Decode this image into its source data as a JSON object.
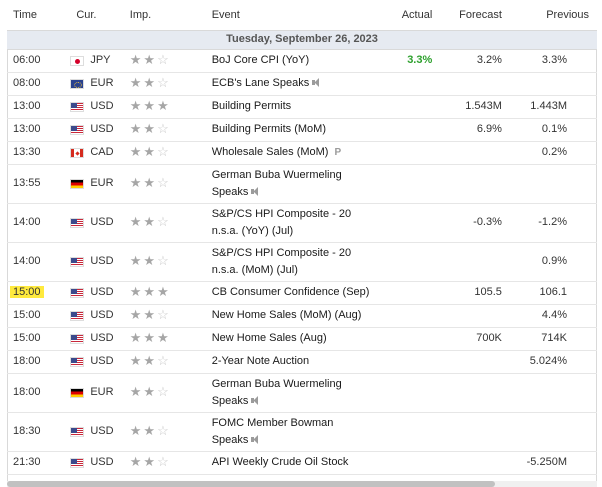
{
  "headers": {
    "time": "Time",
    "currency": "Cur.",
    "importance": "Imp.",
    "event": "Event",
    "actual": "Actual",
    "forecast": "Forecast",
    "previous": "Previous"
  },
  "date_label": "Tuesday, September 26, 2023",
  "colors": {
    "actual_positive": "#2da02d",
    "date_row_bg": "#e6eaf1",
    "time_highlight": "#ffea3d"
  },
  "rows": [
    {
      "time": "06:00",
      "currency": "JPY",
      "flag": "flag-jpy",
      "importance": 2,
      "event_line1": "BoJ Core CPI (YoY)",
      "event_line2": "",
      "icon": "",
      "actual": "3.3%",
      "actual_positive": true,
      "forecast": "3.2%",
      "previous": "3.3%"
    },
    {
      "time": "08:00",
      "currency": "EUR",
      "flag": "flag-eur",
      "importance": 2,
      "event_line1": "ECB's Lane Speaks",
      "event_line2": "",
      "icon": "speaker-icon",
      "actual": "",
      "forecast": "",
      "previous": ""
    },
    {
      "time": "13:00",
      "currency": "USD",
      "flag": "flag-usd",
      "importance": 3,
      "event_line1": "Building Permits",
      "event_line2": "",
      "icon": "",
      "actual": "",
      "forecast": "1.543M",
      "previous": "1.443M"
    },
    {
      "time": "13:00",
      "currency": "USD",
      "flag": "flag-usd",
      "importance": 2,
      "event_line1": "Building Permits (MoM)",
      "event_line2": "",
      "icon": "",
      "actual": "",
      "forecast": "6.9%",
      "previous": "0.1%"
    },
    {
      "time": "13:30",
      "currency": "CAD",
      "flag": "flag-cad",
      "importance": 2,
      "event_line1": "Wholesale Sales (MoM)",
      "event_line2": "",
      "icon": "prelim-icon",
      "actual": "",
      "forecast": "",
      "previous": "0.2%"
    },
    {
      "time": "13:55",
      "currency": "EUR",
      "flag": "flag-eur-de",
      "importance": 2,
      "event_line1": "German Buba Wuermeling",
      "event_line2": "Speaks",
      "icon": "speaker-icon",
      "actual": "",
      "forecast": "",
      "previous": ""
    },
    {
      "time": "14:00",
      "currency": "USD",
      "flag": "flag-usd",
      "importance": 2,
      "event_line1": "S&P/CS HPI Composite - 20",
      "event_line2": "n.s.a. (YoY) (Jul)",
      "icon": "",
      "actual": "",
      "forecast": "-0.3%",
      "previous": "-1.2%"
    },
    {
      "time": "14:00",
      "currency": "USD",
      "flag": "flag-usd",
      "importance": 2,
      "event_line1": "S&P/CS HPI Composite - 20",
      "event_line2": "n.s.a. (MoM) (Jul)",
      "icon": "",
      "actual": "",
      "forecast": "",
      "previous": "0.9%"
    },
    {
      "time": "15:00",
      "currency": "USD",
      "flag": "flag-usd",
      "importance": 3,
      "event_line1": "CB Consumer Confidence (Sep)",
      "event_line2": "",
      "icon": "",
      "actual": "",
      "forecast": "105.5",
      "previous": "106.1",
      "highlight": true
    },
    {
      "time": "15:00",
      "currency": "USD",
      "flag": "flag-usd",
      "importance": 2,
      "event_line1": "New Home Sales (MoM) (Aug)",
      "event_line2": "",
      "icon": "",
      "actual": "",
      "forecast": "",
      "previous": "4.4%"
    },
    {
      "time": "15:00",
      "currency": "USD",
      "flag": "flag-usd",
      "importance": 3,
      "event_line1": "New Home Sales (Aug)",
      "event_line2": "",
      "icon": "",
      "actual": "",
      "forecast": "700K",
      "previous": "714K"
    },
    {
      "time": "18:00",
      "currency": "USD",
      "flag": "flag-usd",
      "importance": 2,
      "event_line1": "2-Year Note Auction",
      "event_line2": "",
      "icon": "",
      "actual": "",
      "forecast": "",
      "previous": "5.024%"
    },
    {
      "time": "18:00",
      "currency": "EUR",
      "flag": "flag-eur-de",
      "importance": 2,
      "event_line1": "German Buba Wuermeling",
      "event_line2": "Speaks",
      "icon": "speaker-icon",
      "actual": "",
      "forecast": "",
      "previous": ""
    },
    {
      "time": "18:30",
      "currency": "USD",
      "flag": "flag-usd",
      "importance": 2,
      "event_line1": "FOMC Member Bowman",
      "event_line2": "Speaks",
      "icon": "speaker-icon",
      "actual": "",
      "forecast": "",
      "previous": ""
    },
    {
      "time": "21:30",
      "currency": "USD",
      "flag": "flag-usd",
      "importance": 2,
      "event_line1": "API Weekly Crude Oil Stock",
      "event_line2": "",
      "icon": "",
      "actual": "",
      "forecast": "",
      "previous": "-5.250M"
    }
  ]
}
